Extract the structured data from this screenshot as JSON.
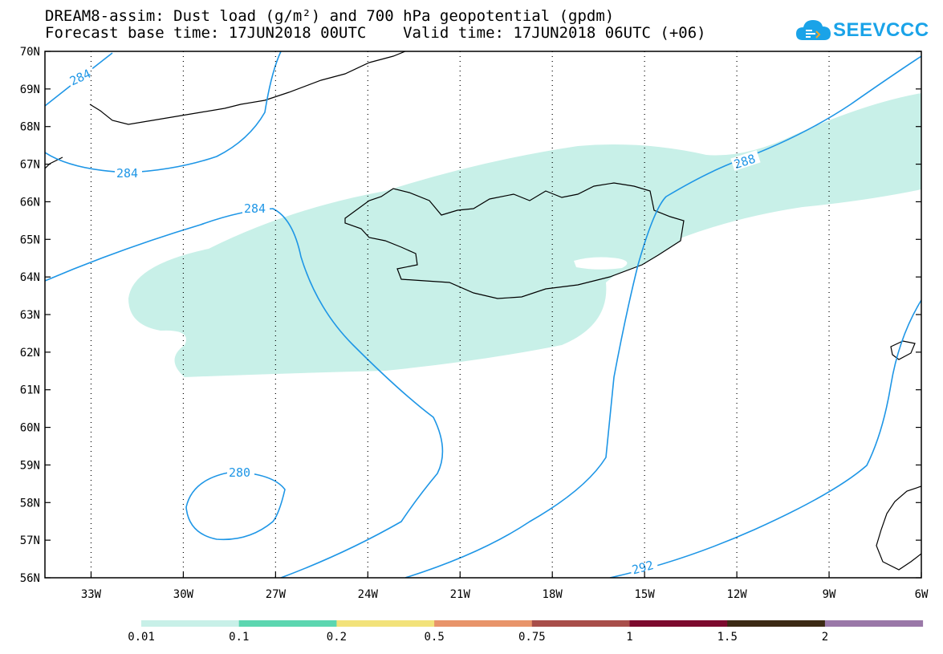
{
  "header": {
    "title_line1": "DREAM8-assim: Dust load (g/m²) and 700 hPa geopotential (gpdm)",
    "title_line2": "Forecast base time: 17JUN2018 00UTC    Valid time: 17JUN2018 06UTC (+06)"
  },
  "logo": {
    "text": "SEEVCCC",
    "icon": "cloud-icon",
    "color": "#1aa3e8"
  },
  "map": {
    "lon_range": [
      -34.5,
      -6
    ],
    "lat_range": [
      56,
      70
    ],
    "lon_ticks": [
      "33W",
      "30W",
      "27W",
      "24W",
      "21W",
      "18W",
      "15W",
      "12W",
      "9W",
      "6W"
    ],
    "lat_ticks": [
      "56N",
      "57N",
      "58N",
      "59N",
      "60N",
      "61N",
      "62N",
      "63N",
      "64N",
      "65N",
      "66N",
      "67N",
      "68N",
      "69N",
      "70N"
    ],
    "contour_color": "#1e96e6",
    "dust_color": "#c8f0e8",
    "contour_labels": [
      "284",
      "284",
      "284",
      "288",
      "280",
      "292"
    ]
  },
  "legend": {
    "labels": [
      "0.01",
      "0.1",
      "0.2",
      "0.5",
      "0.75",
      "1",
      "1.5",
      "2"
    ],
    "colors": [
      "#c8f0e8",
      "#5cd6b0",
      "#f2e27a",
      "#e8946a",
      "#a84e4a",
      "#7c0a2e",
      "#3c2a14",
      "#9a78a8"
    ]
  }
}
